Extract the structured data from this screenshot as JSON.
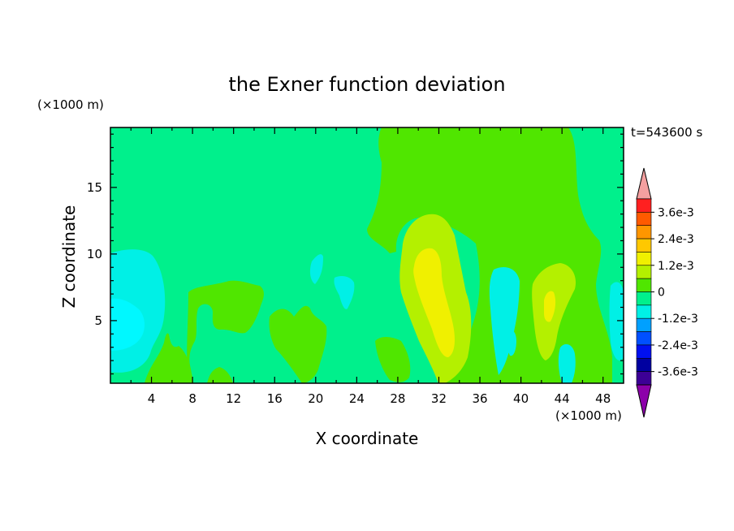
{
  "chart_data": {
    "type": "contour",
    "title": "the Exner function deviation",
    "xlabel": "X coordinate",
    "ylabel": "Z coordinate",
    "x_unit": "(×1000 m)",
    "y_unit": "(×1000 m)",
    "time_label": "t=543600 s",
    "xlim": [
      0,
      50
    ],
    "ylim": [
      0.3,
      19.5
    ],
    "x_ticks": [
      4,
      8,
      12,
      16,
      20,
      24,
      28,
      32,
      36,
      40,
      44,
      48
    ],
    "y_ticks": [
      5,
      10,
      15
    ],
    "colorbar": {
      "labels": [
        "3.6e-3",
        "2.4e-3",
        "1.2e-3",
        "0",
        "-1.2e-3",
        "-2.4e-3",
        "-3.6e-3"
      ],
      "label_values": [
        0.0036,
        0.0024,
        0.0012,
        0,
        -0.0012,
        -0.0024,
        -0.0036
      ],
      "levels_top_to_bottom": [
        0.0042,
        0.0036,
        0.003,
        0.0024,
        0.0018,
        0.0012,
        0.0006,
        0,
        -0.0006,
        -0.0012,
        -0.0018,
        -0.0024,
        -0.003,
        -0.0036,
        -0.0042
      ],
      "colors_top_to_bottom": [
        "#f4a0a0",
        "#ff2020",
        "#ff5a00",
        "#ff9600",
        "#ffc800",
        "#f0f000",
        "#b4f000",
        "#50e600",
        "#00f08c",
        "#00f0e6",
        "#00a0ff",
        "#0050ff",
        "#0010f0",
        "#0000a0",
        "#3c0096",
        "#8c00aa"
      ]
    },
    "regions": [
      {
        "value": -0.0006,
        "color": "#00f08c",
        "desc": "background"
      },
      {
        "value": 0.0003,
        "color": "#50e600",
        "desc": "upper-right dome",
        "x_range": [
          25.5,
          48.5
        ],
        "z_range": [
          0.3,
          19.5
        ]
      },
      {
        "value": 0.0003,
        "color": "#50e600",
        "desc": "low lobes",
        "x_range": [
          3.5,
          21
        ],
        "z_range": [
          0.3,
          8
        ]
      },
      {
        "value": 0.0009,
        "color": "#b4f000",
        "desc": "central plume",
        "x_range": [
          28,
          35.5
        ],
        "z_range": [
          0.3,
          13.2
        ]
      },
      {
        "value": 0.0009,
        "color": "#b4f000",
        "desc": "right plume",
        "x_range": [
          40,
          45.5
        ],
        "z_range": [
          1,
          8.2
        ]
      },
      {
        "value": 0.0015,
        "color": "#f0f000",
        "desc": "central core",
        "x_range": [
          29.5,
          34
        ],
        "z_range": [
          2.5,
          10.5
        ]
      },
      {
        "value": 0.0015,
        "color": "#f0f000",
        "desc": "right core",
        "x_range": [
          42,
          43.8
        ],
        "z_range": [
          5.3,
          7.5
        ]
      },
      {
        "value": -0.0012,
        "color": "#00f0e6",
        "desc": "left cyan blob",
        "x_range": [
          0,
          5.5
        ],
        "z_range": [
          0.8,
          10.8
        ]
      },
      {
        "value": -0.0012,
        "color": "#00f0e6",
        "desc": "small cyan patches",
        "x_range": [
          19,
          49.8
        ],
        "z_range": [
          1.6,
          10.3
        ]
      }
    ]
  }
}
